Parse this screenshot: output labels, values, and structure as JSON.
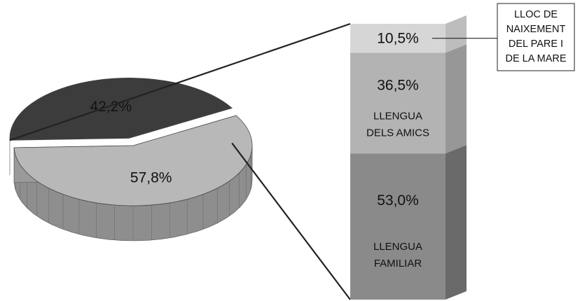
{
  "chart_data": [
    {
      "type": "pie",
      "slices": [
        {
          "value": 57.8,
          "label": "57,8%",
          "color": "#b8b8b8",
          "side_color": "#8e8e8e"
        },
        {
          "value": 42.2,
          "label": "42,2%",
          "color": "#3c3c3c",
          "side_color": "#1f1f1f"
        }
      ],
      "exploded_slice": 1
    },
    {
      "type": "bar",
      "stacked": true,
      "breakdown_of": "42,2%",
      "segments": [
        {
          "value": 53.0,
          "label": "53,0%",
          "name_lines": [
            "LLENGUA",
            "FAMILIAR"
          ],
          "color": "#8a8a8a",
          "side_color": "#6a6a6a"
        },
        {
          "value": 36.5,
          "label": "36,5%",
          "name_lines": [
            "LLENGUA",
            "DELS AMICS"
          ],
          "color": "#b3b3b3",
          "side_color": "#979797"
        },
        {
          "value": 10.5,
          "label": "10,5%",
          "name_lines": [],
          "color": "#d6d6d6",
          "side_color": "#bdbdbd"
        }
      ],
      "callout": {
        "segment": 2,
        "lines": [
          "LLOC DE",
          "NAIXEMENT",
          "DEL PARE I",
          "DE LA MARE"
        ]
      }
    }
  ]
}
